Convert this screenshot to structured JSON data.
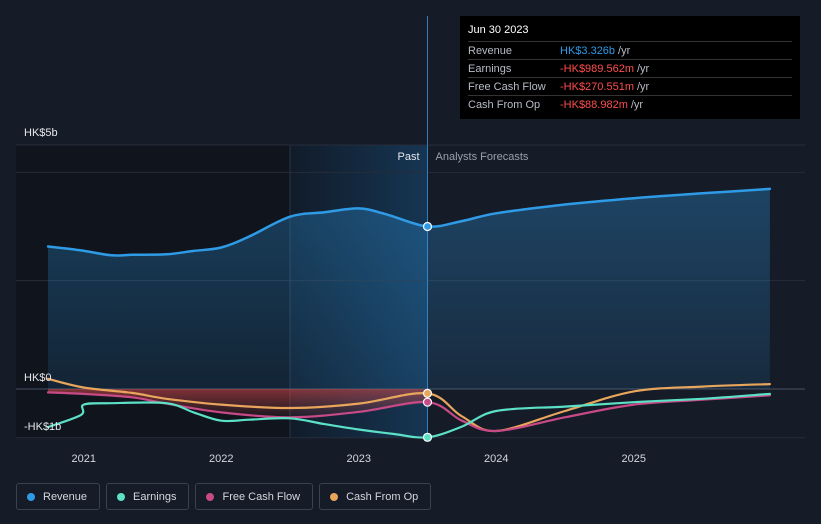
{
  "colors": {
    "background": "#151b27",
    "revenue": "#2f9be6",
    "earnings": "#5ce0c6",
    "free_cash_flow": "#c74a87",
    "cash_from_op": "#e8a55c",
    "negative": "#ff4d4d"
  },
  "tooltip": {
    "date": "Jun 30 2023",
    "rows": [
      {
        "name": "Revenue",
        "value": "HK$3.326b",
        "unit": "/yr",
        "color": "#2f9be6"
      },
      {
        "name": "Earnings",
        "value": "-HK$989.562m",
        "unit": "/yr",
        "color": "#ff4d4d"
      },
      {
        "name": "Free Cash Flow",
        "value": "-HK$270.551m",
        "unit": "/yr",
        "color": "#ff4d4d"
      },
      {
        "name": "Cash From Op",
        "value": "-HK$88.982m",
        "unit": "/yr",
        "color": "#ff4d4d"
      }
    ]
  },
  "legend": [
    {
      "label": "Revenue",
      "color": "#2f9be6"
    },
    {
      "label": "Earnings",
      "color": "#5ce0c6"
    },
    {
      "label": "Free Cash Flow",
      "color": "#c74a87"
    },
    {
      "label": "Cash From Op",
      "color": "#e8a55c"
    }
  ],
  "chart_data": {
    "type": "line",
    "y_unit": "HK$ billions",
    "ylim": [
      -1,
      5
    ],
    "y_tick_labels": [
      "HK$5b",
      "HK$0",
      "-HK$1b"
    ],
    "x_tick_labels": [
      "2021",
      "2022",
      "2023",
      "2024",
      "2025"
    ],
    "xlim": [
      2020.5,
      2025.99
    ],
    "past_label": "Past",
    "forecast_label": "Analysts Forecasts",
    "past_start": 2022.5,
    "past_end": 2023.5,
    "highlight_x": 2023.5,
    "series": [
      {
        "name": "Revenue",
        "color": "#2f9be6",
        "points": [
          [
            2020.74,
            2.92
          ],
          [
            2020.98,
            2.84
          ],
          [
            2021.2,
            2.74
          ],
          [
            2021.35,
            2.75
          ],
          [
            2021.6,
            2.76
          ],
          [
            2021.8,
            2.83
          ],
          [
            2022.0,
            2.9
          ],
          [
            2022.2,
            3.12
          ],
          [
            2022.5,
            3.53
          ],
          [
            2022.75,
            3.62
          ],
          [
            2023.0,
            3.7
          ],
          [
            2023.2,
            3.58
          ],
          [
            2023.5,
            3.33
          ],
          [
            2023.75,
            3.44
          ],
          [
            2024.0,
            3.6
          ],
          [
            2024.5,
            3.78
          ],
          [
            2025.0,
            3.91
          ],
          [
            2025.5,
            4.01
          ],
          [
            2025.99,
            4.1
          ]
        ]
      },
      {
        "name": "Earnings",
        "color": "#5ce0c6",
        "points": [
          [
            2020.74,
            -0.78
          ],
          [
            2020.98,
            -0.53
          ],
          [
            2021.0,
            -0.32
          ],
          [
            2021.2,
            -0.29
          ],
          [
            2021.6,
            -0.29
          ],
          [
            2021.8,
            -0.48
          ],
          [
            2022.0,
            -0.65
          ],
          [
            2022.2,
            -0.63
          ],
          [
            2022.5,
            -0.6
          ],
          [
            2022.75,
            -0.72
          ],
          [
            2023.0,
            -0.83
          ],
          [
            2023.25,
            -0.92
          ],
          [
            2023.5,
            -0.99
          ],
          [
            2023.75,
            -0.77
          ],
          [
            2024.0,
            -0.45
          ],
          [
            2024.5,
            -0.36
          ],
          [
            2025.0,
            -0.27
          ],
          [
            2025.5,
            -0.2
          ],
          [
            2025.99,
            -0.1
          ]
        ]
      },
      {
        "name": "Free Cash Flow",
        "color": "#c74a87",
        "points": [
          [
            2020.74,
            -0.07
          ],
          [
            2021.0,
            -0.1
          ],
          [
            2021.35,
            -0.17
          ],
          [
            2021.6,
            -0.3
          ],
          [
            2022.0,
            -0.48
          ],
          [
            2022.5,
            -0.58
          ],
          [
            2023.0,
            -0.47
          ],
          [
            2023.5,
            -0.27
          ],
          [
            2023.75,
            -0.65
          ],
          [
            2024.0,
            -0.86
          ],
          [
            2024.5,
            -0.58
          ],
          [
            2025.0,
            -0.32
          ],
          [
            2025.5,
            -0.22
          ],
          [
            2025.99,
            -0.13
          ]
        ]
      },
      {
        "name": "Cash From Op",
        "color": "#e8a55c",
        "points": [
          [
            2020.74,
            0.21
          ],
          [
            2021.0,
            0.03
          ],
          [
            2021.35,
            -0.08
          ],
          [
            2021.6,
            -0.2
          ],
          [
            2022.0,
            -0.32
          ],
          [
            2022.5,
            -0.39
          ],
          [
            2023.0,
            -0.3
          ],
          [
            2023.5,
            -0.09
          ],
          [
            2023.75,
            -0.56
          ],
          [
            2024.0,
            -0.86
          ],
          [
            2024.5,
            -0.45
          ],
          [
            2025.0,
            -0.05
          ],
          [
            2025.5,
            0.05
          ],
          [
            2025.99,
            0.1
          ]
        ]
      }
    ]
  }
}
